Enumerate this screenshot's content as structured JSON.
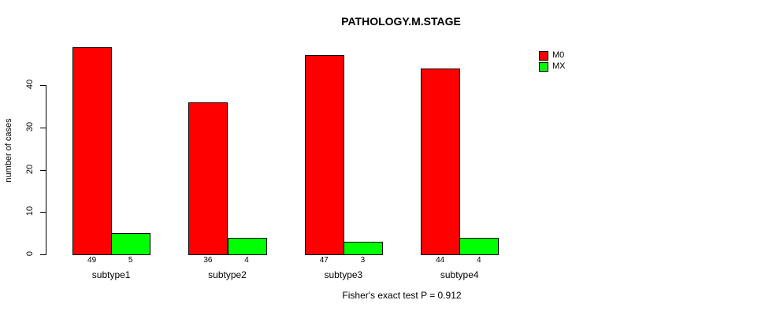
{
  "chart_data": {
    "type": "bar",
    "title": "PATHOLOGY.M.STAGE",
    "categories": [
      "subtype1",
      "subtype2",
      "subtype3",
      "subtype4"
    ],
    "series": [
      {
        "name": "M0",
        "color": "#FF0000",
        "values": [
          49,
          36,
          47,
          44
        ]
      },
      {
        "name": "MX",
        "color": "#00FF00",
        "values": [
          5,
          4,
          3,
          4
        ]
      }
    ],
    "bar_value_labels": [
      [
        "49",
        "5"
      ],
      [
        "36",
        "4"
      ],
      [
        "47",
        "3"
      ],
      [
        "44",
        "4"
      ]
    ],
    "xlabel": "",
    "ylabel": "number of cases",
    "yticks": [
      0,
      10,
      20,
      30,
      40
    ],
    "ylim": [
      0,
      49
    ],
    "grid": false,
    "legend_position": "top-right",
    "annotation": "Fisher's exact test P = 0.912",
    "axis_color": "#000000",
    "background_color": "#FFFFFF"
  }
}
